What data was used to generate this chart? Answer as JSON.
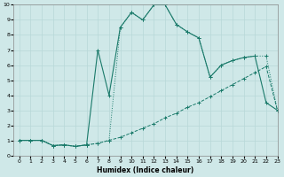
{
  "xlabel": "Humidex (Indice chaleur)",
  "bg_color": "#cfe8e8",
  "grid_color": "#b8d8d8",
  "line_color": "#1a7a6a",
  "xlim": [
    -0.5,
    23
  ],
  "ylim": [
    0,
    10
  ],
  "xticks": [
    0,
    1,
    2,
    3,
    4,
    5,
    6,
    7,
    8,
    9,
    10,
    11,
    12,
    13,
    14,
    15,
    16,
    17,
    18,
    19,
    20,
    21,
    22,
    23
  ],
  "yticks": [
    0,
    1,
    2,
    3,
    4,
    5,
    6,
    7,
    8,
    9,
    10
  ],
  "curve_linear_x": [
    0,
    1,
    2,
    3,
    4,
    5,
    6,
    7,
    8,
    9,
    10,
    11,
    12,
    13,
    14,
    15,
    16,
    17,
    18,
    19,
    20,
    21,
    22,
    23
  ],
  "curve_linear_y": [
    1,
    1,
    1,
    0.65,
    0.7,
    0.6,
    0.7,
    0.8,
    1.0,
    1.2,
    1.5,
    1.8,
    2.1,
    2.5,
    2.8,
    3.2,
    3.5,
    3.9,
    4.3,
    4.7,
    5.1,
    5.5,
    5.9,
    3.0
  ],
  "curve_dotted_x": [
    0,
    1,
    2,
    3,
    4,
    5,
    6,
    7,
    8,
    9,
    10,
    11,
    12,
    13,
    14,
    15,
    16,
    17,
    18,
    19,
    20,
    21,
    22,
    23
  ],
  "curve_dotted_y": [
    1,
    1,
    1,
    0.65,
    0.7,
    0.6,
    0.7,
    0.8,
    1.0,
    8.5,
    9.5,
    9.0,
    10.0,
    10.0,
    8.7,
    8.2,
    7.8,
    5.2,
    6.0,
    6.3,
    6.5,
    6.6,
    6.6,
    3.0
  ],
  "curve_solid_x": [
    0,
    1,
    2,
    3,
    4,
    5,
    6,
    7,
    8,
    9,
    10,
    11,
    12,
    13,
    14,
    15,
    16,
    17,
    18,
    19,
    20,
    21,
    22,
    23
  ],
  "curve_solid_y": [
    1,
    1,
    1,
    0.65,
    0.7,
    0.6,
    0.7,
    7.0,
    4.0,
    8.5,
    9.5,
    9.0,
    10.0,
    10.0,
    8.7,
    8.2,
    7.8,
    5.2,
    6.0,
    6.3,
    6.5,
    6.6,
    3.5,
    3.0
  ]
}
